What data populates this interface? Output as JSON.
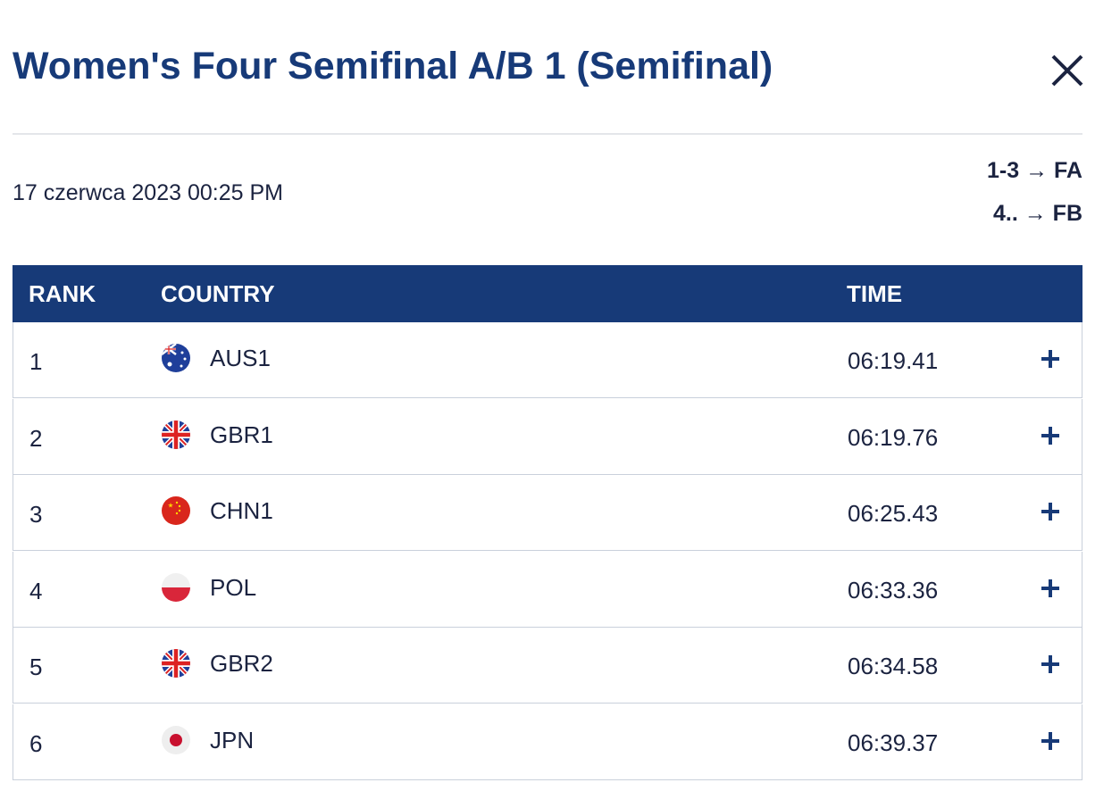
{
  "header": {
    "title": "Women's Four Semifinal A/B 1 (Semifinal)",
    "date": "17 czerwca 2023 00:25 PM",
    "progression": [
      "1-3 → FA",
      "4.. → FB"
    ]
  },
  "table": {
    "columns": [
      "RANK",
      "COUNTRY",
      "TIME"
    ],
    "rows": [
      [
        1,
        "AUS1",
        "06:19.41"
      ],
      [
        2,
        "GBR1",
        "06:19.76"
      ],
      [
        3,
        "CHN1",
        "06:25.43"
      ],
      [
        4,
        "POL",
        "06:33.36"
      ],
      [
        5,
        "GBR2",
        "06:34.58"
      ],
      [
        6,
        "JPN",
        "06:39.37"
      ]
    ]
  }
}
